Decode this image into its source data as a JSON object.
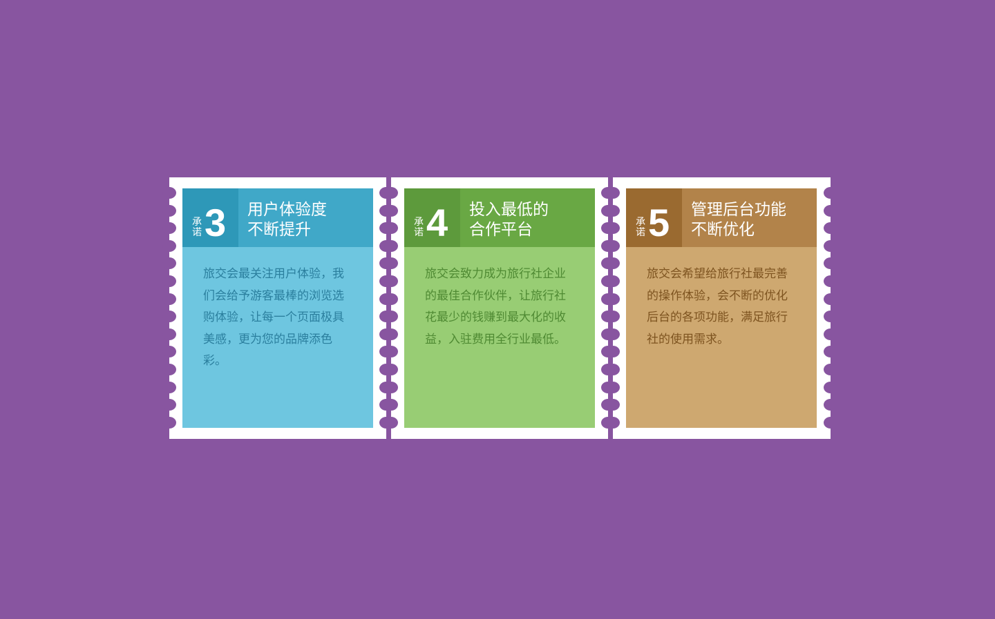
{
  "colors": {
    "background": "#8855a0",
    "card_1": {
      "badge": "#2e98b8",
      "header": "#40a8c8",
      "body": "#6ec6e0",
      "text": "#2b7f9e"
    },
    "card_2": {
      "badge": "#5d9a3c",
      "header": "#69a844",
      "body": "#98cd74",
      "text": "#4f8a33"
    },
    "card_3": {
      "badge": "#9a6a30",
      "header": "#b2834a",
      "body": "#cea870",
      "text": "#7e5420"
    }
  },
  "cards": [
    {
      "promise_label": "承诺",
      "number": "3",
      "title_line1": "用户体验度",
      "title_line2": "不断提升",
      "description": "旅交会最关注用户体验，我们会给予游客最棒的浏览选购体验，让每一个页面极具美感，更为您的品牌添色彩。"
    },
    {
      "promise_label": "承诺",
      "number": "4",
      "title_line1": "投入最低的",
      "title_line2": "合作平台",
      "description": "旅交会致力成为旅行社企业的最佳合作伙伴，让旅行社花最少的钱赚到最大化的收益，入驻费用全行业最低。"
    },
    {
      "promise_label": "承诺",
      "number": "5",
      "title_line1": "管理后台功能",
      "title_line2": "不断优化",
      "description": "旅交会希望给旅行社最完善的操作体验，会不断的优化后台的各项功能，满足旅行社的使用需求。"
    }
  ]
}
